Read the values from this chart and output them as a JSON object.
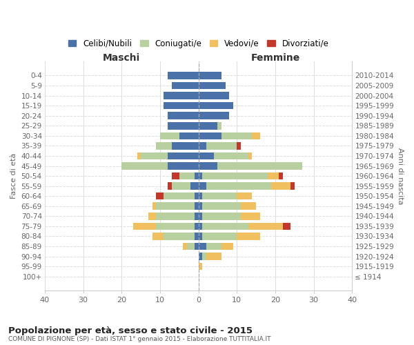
{
  "age_groups": [
    "100+",
    "95-99",
    "90-94",
    "85-89",
    "80-84",
    "75-79",
    "70-74",
    "65-69",
    "60-64",
    "55-59",
    "50-54",
    "45-49",
    "40-44",
    "35-39",
    "30-34",
    "25-29",
    "20-24",
    "15-19",
    "10-14",
    "5-9",
    "0-4"
  ],
  "birth_years": [
    "≤ 1914",
    "1915-1919",
    "1920-1924",
    "1925-1929",
    "1930-1934",
    "1935-1939",
    "1940-1944",
    "1945-1949",
    "1950-1954",
    "1955-1959",
    "1960-1964",
    "1965-1969",
    "1970-1974",
    "1975-1979",
    "1980-1984",
    "1985-1989",
    "1990-1994",
    "1995-1999",
    "2000-2004",
    "2005-2009",
    "2010-2014"
  ],
  "maschi": {
    "celibi": [
      0,
      0,
      0,
      1,
      1,
      1,
      1,
      1,
      1,
      2,
      1,
      8,
      8,
      7,
      5,
      8,
      8,
      9,
      9,
      7,
      8
    ],
    "coniugati": [
      0,
      0,
      0,
      2,
      8,
      10,
      10,
      10,
      8,
      5,
      4,
      12,
      7,
      4,
      5,
      0,
      0,
      0,
      0,
      0,
      0
    ],
    "vedovi": [
      0,
      0,
      0,
      1,
      3,
      6,
      2,
      1,
      0,
      0,
      0,
      0,
      1,
      0,
      0,
      0,
      0,
      0,
      0,
      0,
      0
    ],
    "divorziati": [
      0,
      0,
      0,
      0,
      0,
      0,
      0,
      0,
      2,
      1,
      2,
      0,
      0,
      0,
      0,
      0,
      0,
      0,
      0,
      0,
      0
    ]
  },
  "femmine": {
    "nubili": [
      0,
      0,
      1,
      2,
      1,
      1,
      1,
      1,
      1,
      2,
      1,
      5,
      4,
      2,
      6,
      5,
      8,
      9,
      8,
      7,
      6
    ],
    "coniugate": [
      0,
      0,
      1,
      4,
      9,
      12,
      10,
      10,
      9,
      17,
      17,
      22,
      9,
      8,
      8,
      1,
      0,
      0,
      0,
      0,
      0
    ],
    "vedove": [
      0,
      1,
      4,
      3,
      6,
      9,
      5,
      4,
      4,
      5,
      3,
      0,
      1,
      0,
      2,
      0,
      0,
      0,
      0,
      0,
      0
    ],
    "divorziate": [
      0,
      0,
      0,
      0,
      0,
      2,
      0,
      0,
      0,
      1,
      1,
      0,
      0,
      1,
      0,
      0,
      0,
      0,
      0,
      0,
      0
    ]
  },
  "colors": {
    "celibi": "#4a72a8",
    "coniugati": "#b8cfa0",
    "vedovi": "#f0c060",
    "divorziati": "#c0392b"
  },
  "xlim": 40,
  "title": "Popolazione per età, sesso e stato civile - 2015",
  "subtitle": "COMUNE DI PIGNONE (SP) - Dati ISTAT 1° gennaio 2015 - Elaborazione TUTTITALIA.IT",
  "ylabel_left": "Fasce di età",
  "ylabel_right": "Anni di nascita",
  "xlabel_left": "Maschi",
  "xlabel_right": "Femmine",
  "legend_labels": [
    "Celibi/Nubili",
    "Coniugati/e",
    "Vedovi/e",
    "Divorziati/e"
  ],
  "background_color": "#ffffff"
}
